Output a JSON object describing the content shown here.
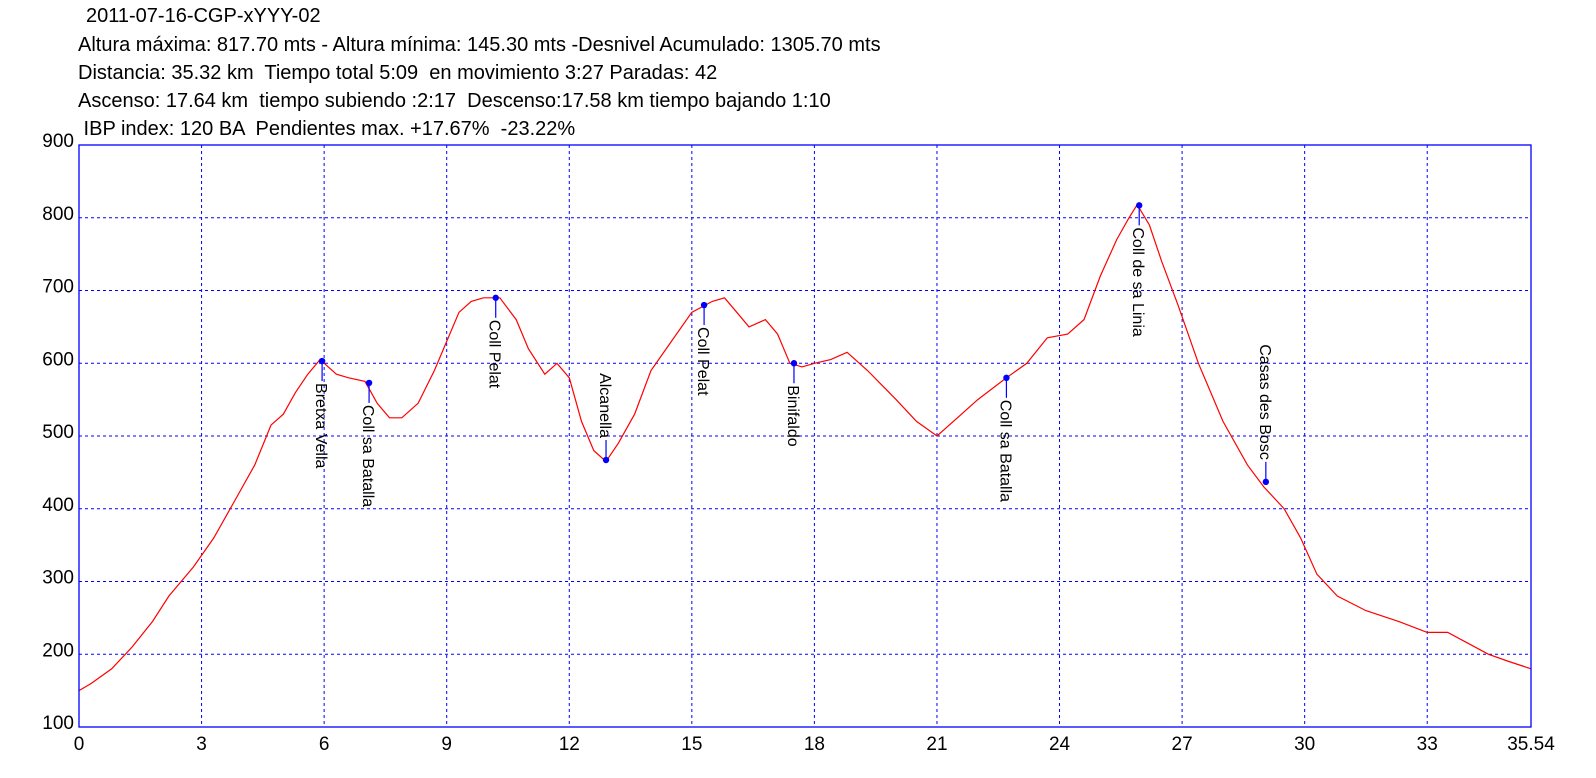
{
  "header": {
    "line1": "2011-07-16-CGP-xYYY-02",
    "line2": "Altura máxima: 817.70 mts - Altura mínima: 145.30 mts -Desnivel Acumulado: 1305.70 mts",
    "line3": "Distancia: 35.32 km  Tiempo total 5:09  en movimiento 3:27 Paradas: 42",
    "line4": "Ascenso: 17.64 km  tiempo subiendo :2:17  Descenso:17.58 km tiempo bajando 1:10",
    "line5": " IBP index: 120 BA  Pendientes max. +17.67%  -23.22%"
  },
  "chart_data": {
    "type": "line",
    "title": "2011-07-16-CGP-xYYY-02",
    "xlabel": "",
    "ylabel": "",
    "xlim": [
      0,
      35.54
    ],
    "ylim": [
      100,
      900
    ],
    "xticks": [
      "0",
      "3",
      "6",
      "9",
      "12",
      "15",
      "18",
      "21",
      "24",
      "27",
      "30",
      "33",
      "35.54"
    ],
    "xtick_values": [
      0,
      3,
      6,
      9,
      12,
      15,
      18,
      21,
      24,
      27,
      30,
      33,
      35.54
    ],
    "yticks": [
      "100",
      "200",
      "300",
      "400",
      "500",
      "600",
      "700",
      "800",
      "900"
    ],
    "ytick_values": [
      100,
      200,
      300,
      400,
      500,
      600,
      700,
      800,
      900
    ],
    "grid": true,
    "colors": {
      "profile": "#ff0000",
      "frame": "#0000ff",
      "grid": "#0000ff",
      "waypoint": "#0000ff"
    },
    "series": [
      {
        "x": [
          0,
          0.3,
          0.8,
          1.3,
          1.8,
          2.2,
          2.8,
          3.3,
          3.8,
          4.3,
          4.7,
          5.0,
          5.3,
          5.6,
          5.9,
          6.3,
          6.6,
          7.0,
          7.3,
          7.6,
          7.9,
          8.3,
          8.7,
          9.0,
          9.3,
          9.6,
          9.9,
          10.3,
          10.7,
          11.0,
          11.4,
          11.7,
          12.0,
          12.3,
          12.6,
          12.9,
          13.2,
          13.6,
          14.0,
          14.5,
          15.0,
          15.5,
          15.8,
          16.1,
          16.4,
          16.8,
          17.1,
          17.4,
          17.7,
          18.0,
          18.4,
          18.8,
          19.3,
          20.0,
          20.5,
          21.0,
          21.5,
          22.0,
          22.7,
          23.2,
          23.7,
          24.2,
          24.6,
          25.0,
          25.4,
          25.7,
          25.9,
          26.2,
          26.5,
          26.9,
          27.4,
          28.0,
          28.6,
          29.0,
          29.5,
          29.9,
          30.3,
          30.8,
          31.5,
          32.3,
          33.0,
          33.5,
          34.0,
          34.5,
          35.0,
          35.54
        ],
        "y": [
          150,
          160,
          180,
          210,
          245,
          280,
          320,
          360,
          410,
          460,
          515,
          530,
          560,
          585,
          605,
          585,
          580,
          575,
          545,
          525,
          525,
          545,
          590,
          630,
          670,
          685,
          690,
          690,
          660,
          620,
          585,
          600,
          580,
          520,
          480,
          465,
          490,
          530,
          590,
          630,
          670,
          685,
          690,
          670,
          650,
          660,
          640,
          600,
          595,
          600,
          605,
          615,
          590,
          550,
          520,
          500,
          525,
          550,
          580,
          600,
          635,
          640,
          660,
          720,
          770,
          800,
          818,
          790,
          740,
          680,
          600,
          520,
          460,
          430,
          400,
          360,
          310,
          280,
          260,
          245,
          230,
          230,
          215,
          200,
          190,
          180
        ]
      }
    ],
    "waypoints": [
      {
        "label": "Bretxa Vella",
        "x": 5.95,
        "y": 603,
        "side": "below"
      },
      {
        "label": "Coll sa Batalla",
        "x": 7.1,
        "y": 573,
        "side": "below"
      },
      {
        "label": "Coll Pelat",
        "x": 10.2,
        "y": 690,
        "side": "below"
      },
      {
        "label": "Alcanella",
        "x": 12.9,
        "y": 467,
        "side": "above"
      },
      {
        "label": "Coll Pelat",
        "x": 15.3,
        "y": 680,
        "side": "below"
      },
      {
        "label": "Binifaldo",
        "x": 17.5,
        "y": 600,
        "side": "below"
      },
      {
        "label": "Coll sa Batalla",
        "x": 22.7,
        "y": 580,
        "side": "below"
      },
      {
        "label": "Coll de sa Linia",
        "x": 25.95,
        "y": 817,
        "side": "below"
      },
      {
        "label": "Casas des Bosc",
        "x": 29.05,
        "y": 437,
        "side": "above"
      }
    ]
  }
}
